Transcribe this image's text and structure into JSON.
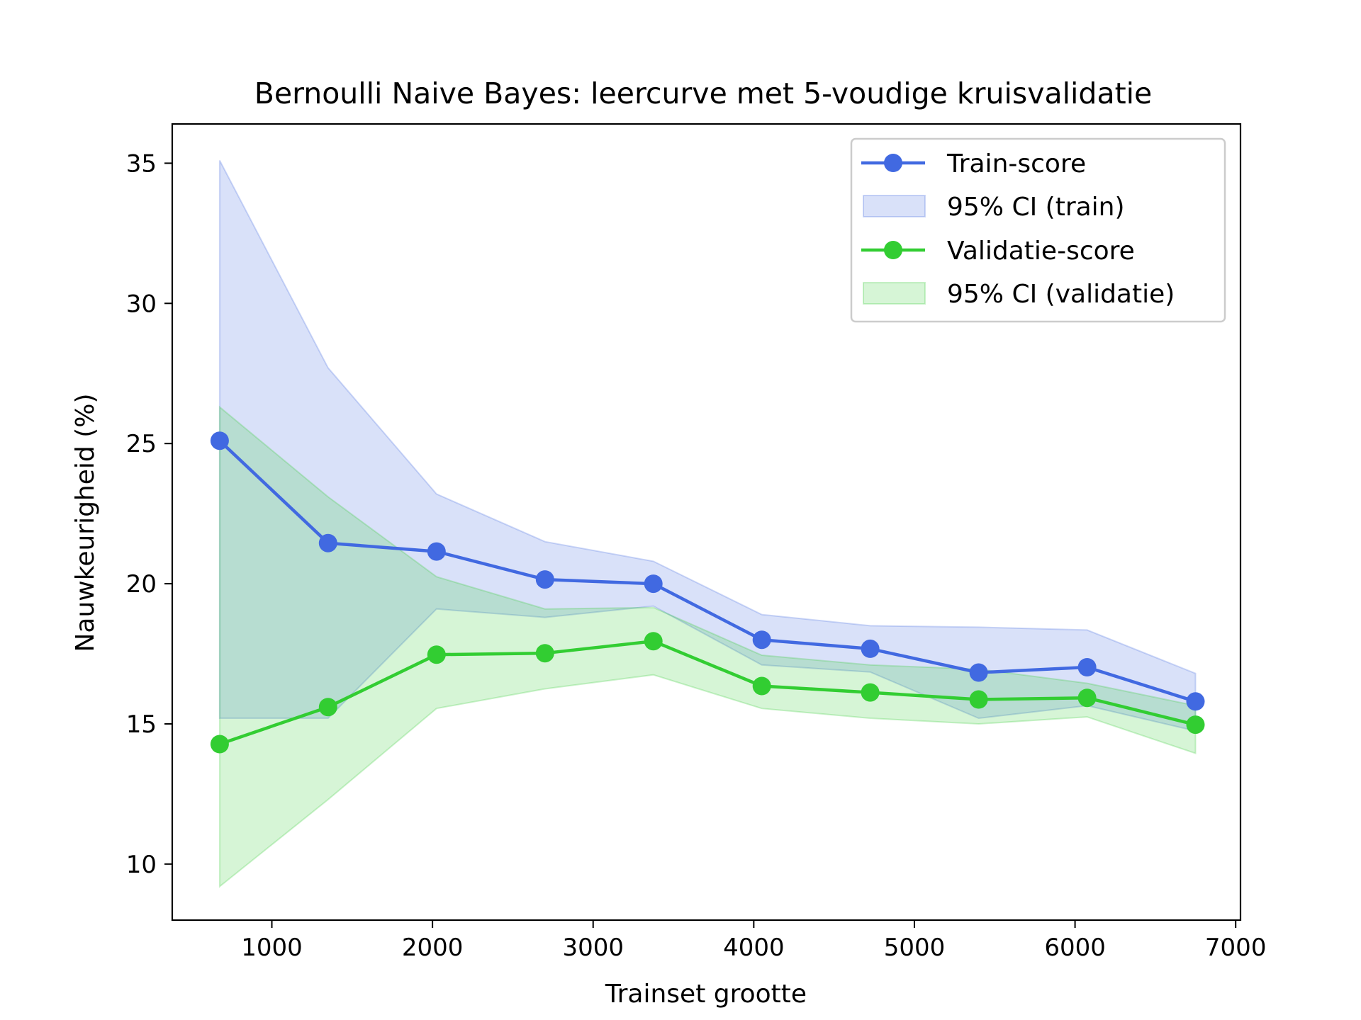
{
  "chart_data": {
    "type": "line",
    "title": "Bernoulli Naive Bayes: leercurve met 5-voudige kruisvalidatie",
    "xlabel": "Trainset grootte",
    "ylabel": "Nauwkeurigheid (%)",
    "xlim": [
      380,
      7030
    ],
    "ylim": [
      8,
      36.4
    ],
    "xticks": [
      1000,
      2000,
      3000,
      4000,
      5000,
      6000,
      7000
    ],
    "xtick_labels": [
      "1000",
      "2000",
      "3000",
      "4000",
      "5000",
      "6000",
      "7000"
    ],
    "yticks": [
      10,
      15,
      20,
      25,
      30,
      35
    ],
    "ytick_labels": [
      "10",
      "15",
      "20",
      "25",
      "30",
      "35"
    ],
    "grid": false,
    "legend_position": "top-right",
    "x": [
      675,
      1350,
      2025,
      2700,
      3375,
      4050,
      4725,
      5400,
      6075,
      6750
    ],
    "series": [
      {
        "name": "Train-score",
        "color": "#4169e1",
        "values": [
          25.1,
          21.45,
          21.15,
          20.15,
          20.0,
          18.0,
          17.68,
          16.83,
          17.02,
          15.8
        ],
        "band_name": "95% CI (train)",
        "band_color": "#4169e1",
        "ci_lower": [
          15.2,
          15.2,
          19.1,
          18.8,
          19.2,
          17.1,
          16.85,
          15.2,
          15.65,
          14.75
        ],
        "ci_upper": [
          35.1,
          27.7,
          23.2,
          21.5,
          20.8,
          18.9,
          18.5,
          18.45,
          18.35,
          16.8
        ]
      },
      {
        "name": "Validatie-score",
        "color": "#32cd32",
        "values": [
          14.28,
          15.6,
          17.47,
          17.52,
          17.95,
          16.35,
          16.12,
          15.87,
          15.93,
          14.97
        ],
        "band_name": "95% CI (validatie)",
        "band_color": "#32cd32",
        "ci_lower": [
          9.2,
          12.3,
          15.55,
          16.25,
          16.75,
          15.55,
          15.2,
          15.0,
          15.25,
          13.95
        ],
        "ci_upper": [
          26.3,
          23.1,
          20.25,
          19.1,
          19.15,
          17.45,
          17.1,
          16.95,
          16.45,
          15.65
        ]
      }
    ]
  }
}
